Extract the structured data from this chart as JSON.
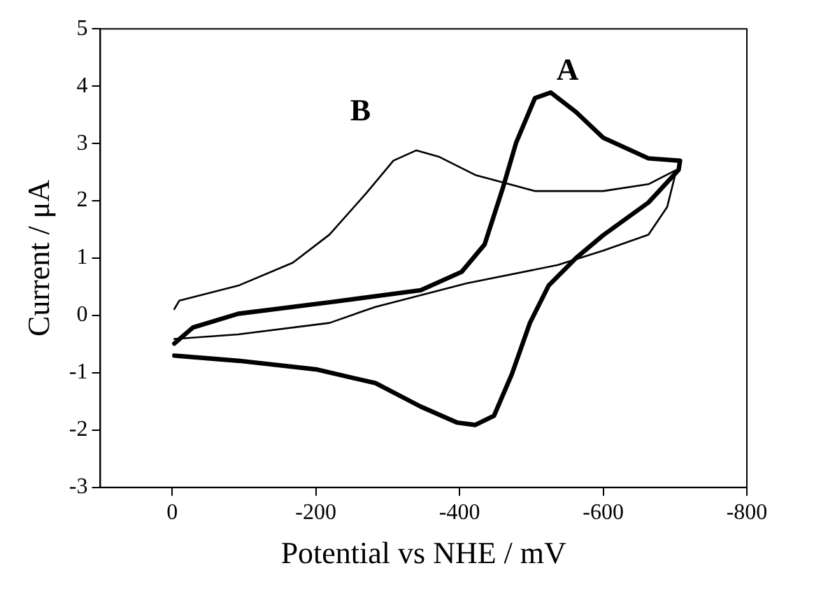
{
  "chart_data": {
    "type": "line",
    "xlabel": "Potential vs NHE / mV",
    "ylabel": "Current / μA",
    "xlim": [
      100,
      -800
    ],
    "xticks": [
      0,
      -200,
      -400,
      -600,
      -800
    ],
    "ylim": [
      -3,
      5
    ],
    "yticks": [
      -3,
      -2,
      -1,
      0,
      1,
      2,
      3,
      4,
      5
    ],
    "grid": false,
    "legend": false,
    "marker": "none",
    "line_style": "solid",
    "series": [
      {
        "name": "A",
        "color": "#000000",
        "x": [
          -3,
          -92,
          -200,
          -283,
          -346,
          -397,
          -422,
          -448,
          -473,
          -498,
          -524,
          -562,
          -600,
          -663,
          -705,
          -707,
          -663,
          -600,
          -562,
          -527,
          -505,
          -479,
          -460,
          -435,
          -403,
          -346,
          -219,
          -92,
          -29,
          -3
        ],
        "values": [
          -0.7,
          -0.79,
          -0.94,
          -1.18,
          -1.59,
          -1.87,
          -1.91,
          -1.75,
          -1.02,
          -0.13,
          0.52,
          1.0,
          1.4,
          1.97,
          2.54,
          2.7,
          2.74,
          3.1,
          3.55,
          3.89,
          3.79,
          3.02,
          2.21,
          1.24,
          0.76,
          0.44,
          0.23,
          0.03,
          -0.21,
          -0.49
        ]
      },
      {
        "name": "B",
        "color": "#000000",
        "x": [
          -3,
          -10,
          -92,
          -168,
          -219,
          -270,
          -308,
          -340,
          -371,
          -422,
          -505,
          -600,
          -663,
          -702,
          -689,
          -663,
          -600,
          -537,
          -410,
          -283,
          -219,
          -92,
          -3
        ],
        "values": [
          0.11,
          0.26,
          0.52,
          0.92,
          1.41,
          2.13,
          2.7,
          2.88,
          2.77,
          2.45,
          2.17,
          2.17,
          2.29,
          2.54,
          1.89,
          1.41,
          1.13,
          0.88,
          0.56,
          0.15,
          -0.13,
          -0.33,
          -0.41
        ]
      }
    ]
  }
}
